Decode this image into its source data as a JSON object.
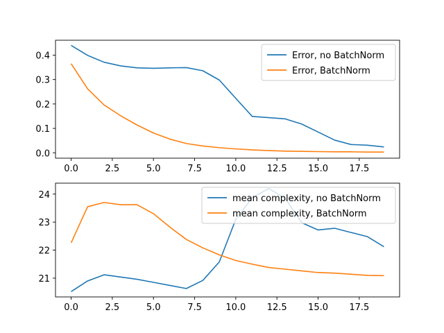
{
  "chart_data": [
    {
      "type": "line",
      "title": "",
      "xlabel": "",
      "ylabel": "",
      "xlim": [
        -0.95,
        19.95
      ],
      "ylim": [
        -0.022,
        0.461
      ],
      "xticks": [
        0.0,
        2.5,
        5.0,
        7.5,
        10.0,
        12.5,
        15.0,
        17.5
      ],
      "xtick_labels": [
        "0.0",
        "2.5",
        "5.0",
        "7.5",
        "10.0",
        "12.5",
        "15.0",
        "17.5"
      ],
      "yticks": [
        0.0,
        0.1,
        0.2,
        0.3,
        0.4
      ],
      "ytick_labels": [
        "0.0",
        "0.1",
        "0.2",
        "0.3",
        "0.4"
      ],
      "grid": false,
      "legend_position": "upper right",
      "x": [
        0,
        1,
        2,
        3,
        4,
        5,
        6,
        7,
        8,
        9,
        10,
        11,
        12,
        13,
        14,
        15,
        16,
        17,
        18,
        19
      ],
      "series": [
        {
          "name": "Error, no BatchNorm",
          "color": "#1f77b4",
          "values": [
            0.44,
            0.399,
            0.371,
            0.356,
            0.348,
            0.346,
            0.348,
            0.349,
            0.336,
            0.298,
            0.223,
            0.149,
            0.144,
            0.139,
            0.118,
            0.085,
            0.052,
            0.034,
            0.031,
            0.024
          ]
        },
        {
          "name": "Error, BatchNorm",
          "color": "#ff7f0e",
          "values": [
            0.365,
            0.262,
            0.196,
            0.152,
            0.114,
            0.081,
            0.056,
            0.038,
            0.028,
            0.021,
            0.016,
            0.012,
            0.009,
            0.007,
            0.006,
            0.005,
            0.004,
            0.004,
            0.003,
            0.003
          ]
        }
      ]
    },
    {
      "type": "line",
      "title": "",
      "xlabel": "",
      "ylabel": "",
      "xlim": [
        -0.95,
        19.95
      ],
      "ylim": [
        20.33,
        24.39
      ],
      "xticks": [
        0.0,
        2.5,
        5.0,
        7.5,
        10.0,
        12.5,
        15.0,
        17.5
      ],
      "xtick_labels": [
        "0.0",
        "2.5",
        "5.0",
        "7.5",
        "10.0",
        "12.5",
        "15.0",
        "17.5"
      ],
      "yticks": [
        21,
        22,
        23,
        24
      ],
      "ytick_labels": [
        "21",
        "22",
        "23",
        "24"
      ],
      "grid": false,
      "legend_position": "upper right",
      "x": [
        0,
        1,
        2,
        3,
        4,
        5,
        6,
        7,
        8,
        9,
        10,
        11,
        12,
        13,
        14,
        15,
        16,
        17,
        18,
        19
      ],
      "series": [
        {
          "name": "mean complexity, no BatchNorm",
          "color": "#1f77b4",
          "values": [
            20.52,
            20.9,
            21.12,
            21.04,
            20.96,
            20.85,
            20.74,
            20.63,
            20.92,
            21.58,
            23.1,
            23.87,
            24.2,
            23.85,
            22.98,
            22.72,
            22.78,
            22.63,
            22.48,
            22.12
          ]
        },
        {
          "name": "mean complexity, BatchNorm",
          "color": "#ff7f0e",
          "values": [
            22.26,
            23.55,
            23.7,
            23.62,
            23.62,
            23.3,
            22.82,
            22.38,
            22.08,
            21.83,
            21.63,
            21.5,
            21.38,
            21.32,
            21.26,
            21.2,
            21.18,
            21.14,
            21.1,
            21.09
          ]
        }
      ]
    }
  ]
}
